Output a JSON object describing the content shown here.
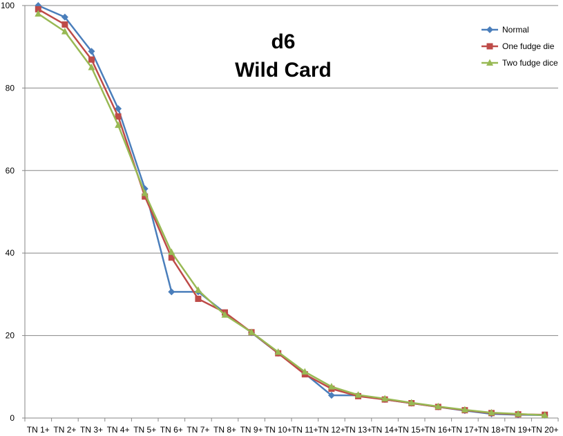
{
  "chart_data": {
    "type": "line",
    "title": "d6",
    "subtitle": "Wild Card",
    "xlabel": "",
    "ylabel": "",
    "ylim": [
      0,
      100
    ],
    "yticks": [
      0,
      20,
      40,
      60,
      80,
      100
    ],
    "grid": true,
    "legend_position": "top-right",
    "categories": [
      "TN 1+",
      "TN 2+",
      "TN 3+",
      "TN 4+",
      "TN 5+",
      "TN 6+",
      "TN 7+",
      "TN 8+",
      "TN 9+",
      "TN 10+",
      "TN 11+",
      "TN 12+",
      "TN 13+",
      "TN 14+",
      "TN 15+",
      "TN 16+",
      "TN 17+",
      "TN 18+",
      "TN 19+",
      "TN 20+"
    ],
    "series": [
      {
        "name": "Normal",
        "color": "#4a7ebb",
        "marker": "diamond",
        "values": [
          100,
          97.2,
          88.9,
          75.0,
          55.6,
          30.6,
          30.6,
          25.5,
          20.7,
          15.7,
          10.8,
          5.5,
          5.5,
          4.5,
          3.6,
          2.7,
          1.8,
          1.0,
          0.8,
          0.7
        ]
      },
      {
        "name": "One fudge die",
        "color": "#be4b48",
        "marker": "square",
        "values": [
          99.1,
          95.4,
          86.9,
          73.1,
          53.7,
          38.9,
          28.9,
          25.6,
          20.8,
          15.7,
          10.6,
          7.1,
          5.3,
          4.5,
          3.6,
          2.7,
          1.9,
          1.2,
          0.9,
          0.8
        ]
      },
      {
        "name": "Two fudge dice",
        "color": "#98b954",
        "marker": "triangle",
        "values": [
          98.0,
          93.7,
          85.0,
          71.0,
          54.5,
          40.2,
          31.0,
          25.0,
          20.8,
          16.0,
          11.2,
          7.6,
          5.6,
          4.7,
          3.7,
          2.8,
          2.0,
          1.3,
          1.0,
          0.7
        ]
      }
    ]
  }
}
